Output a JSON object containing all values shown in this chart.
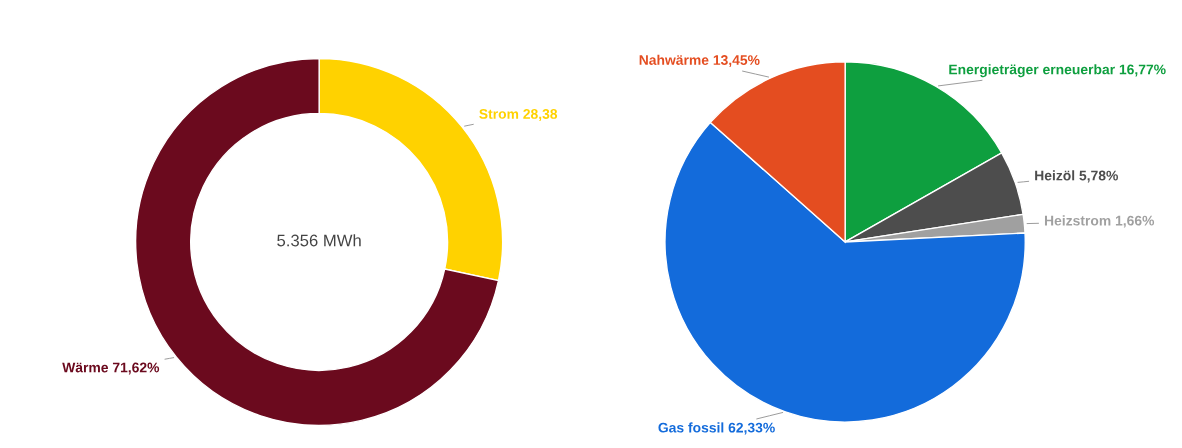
{
  "chart_data": [
    {
      "type": "donut",
      "categories": [
        "Strom",
        "Wärme"
      ],
      "values": [
        28.38,
        71.62
      ],
      "colors": [
        "#ffd200",
        "#6b0a1e"
      ],
      "value_labels": [
        "28,38",
        "71,62%"
      ],
      "annotations": [
        "5.356 MWh"
      ]
    },
    {
      "type": "pie",
      "categories": [
        "Energieträger erneuerbar",
        "Heizöl",
        "Heizstrom",
        "Gas fossil",
        "Nahwärme"
      ],
      "values": [
        16.77,
        5.78,
        1.66,
        62.33,
        13.45
      ],
      "colors": [
        "#0e9f3f",
        "#4d4d4d",
        "#a0a0a0",
        "#136bdb",
        "#e44d20"
      ],
      "value_labels": [
        "16,77%",
        "5,78%",
        "1,66%",
        "62,33%",
        "13,45%"
      ]
    }
  ]
}
